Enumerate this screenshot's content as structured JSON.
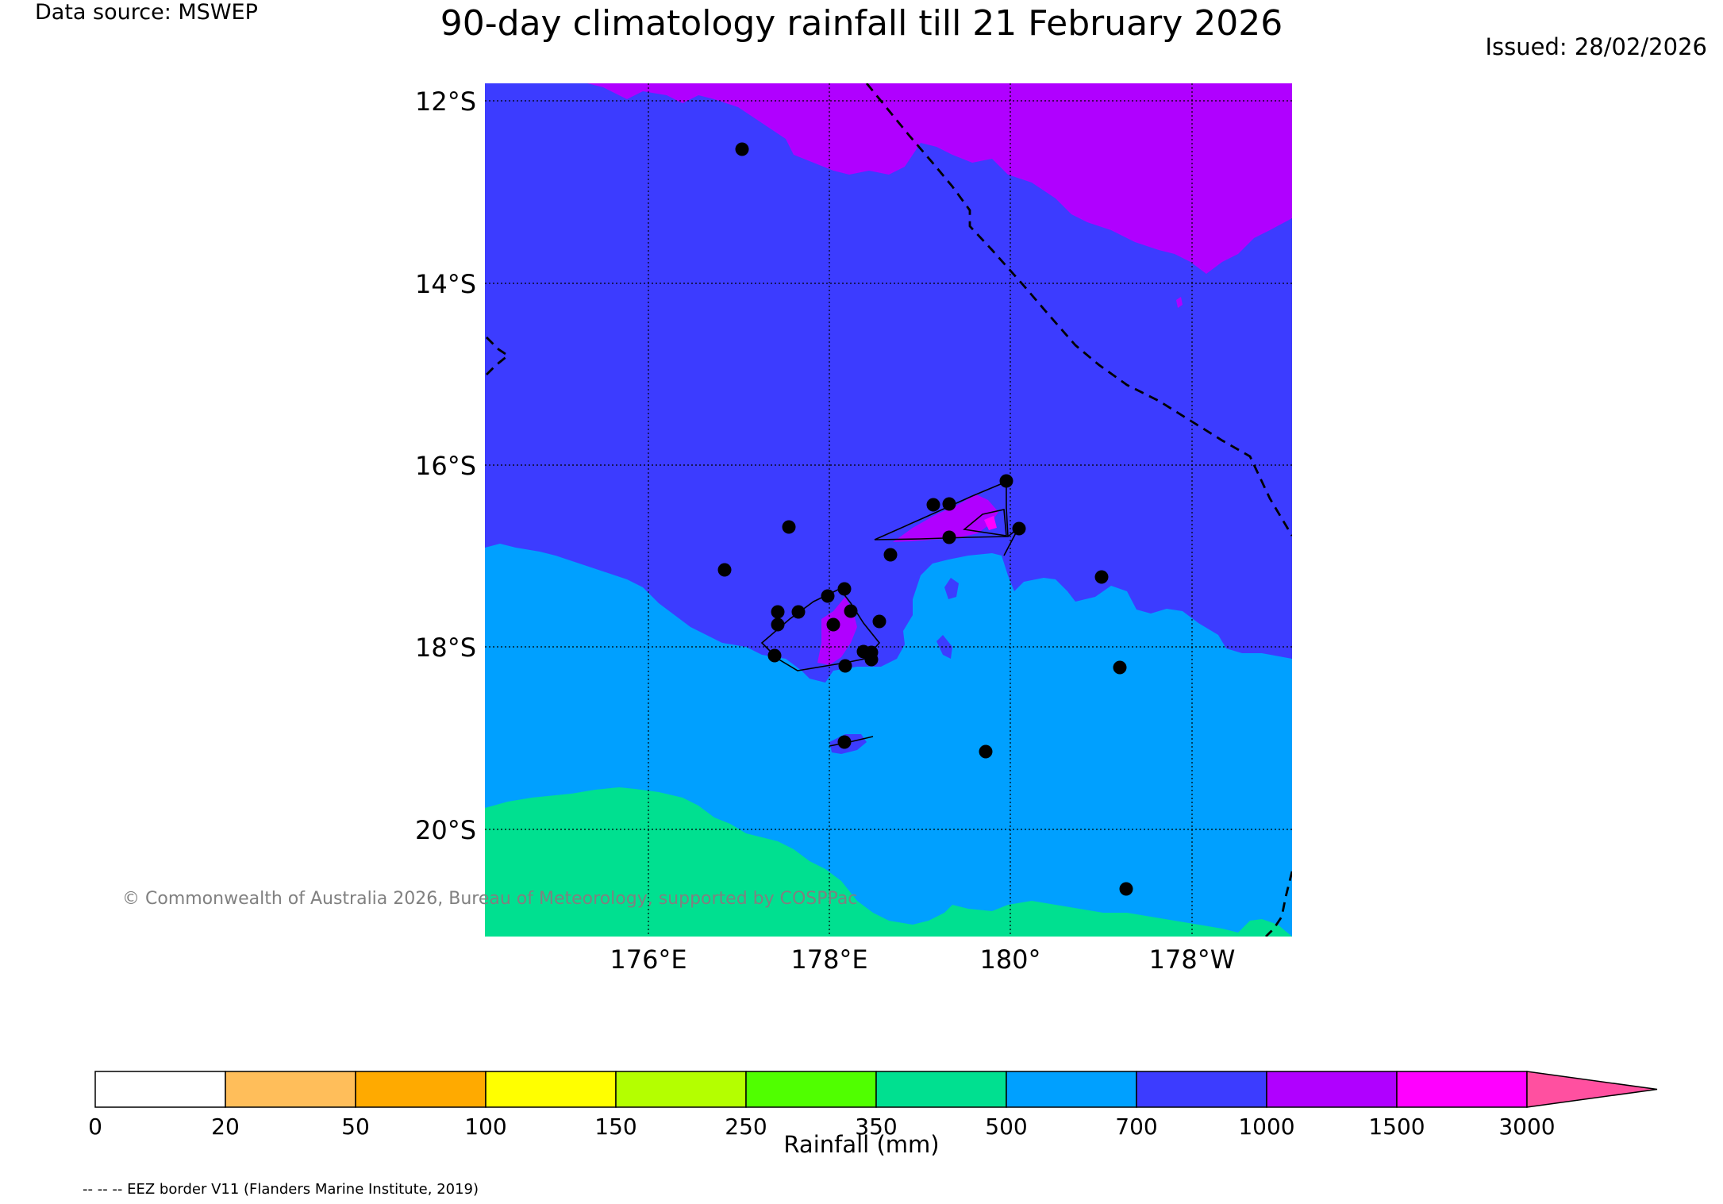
{
  "header": {
    "data_source": "Data source: MSWEP",
    "title": "90-day climatology rainfall till 21 February 2026",
    "issued": "Issued: 28/02/2026"
  },
  "map": {
    "lat_labels": [
      "12°S",
      "14°S",
      "16°S",
      "18°S",
      "20°S"
    ],
    "lon_labels": [
      "176°E",
      "178°E",
      "180°",
      "178°W"
    ],
    "copyright": "© Commonwealth of Australia 2026, Bureau of Meteorology, supported by COSPPac",
    "zone_colors": {
      "1000-1500": "#b000ff",
      "700-1000": "#3c3cff",
      "500-700": "#00a0ff",
      "350-500": "#00e090"
    }
  },
  "colorbar": {
    "title": "Rainfall (mm)",
    "tick_labels": [
      "0",
      "20",
      "50",
      "100",
      "150",
      "250",
      "350",
      "500",
      "700",
      "1000",
      "1500",
      "3000"
    ],
    "colors": [
      "#ffffff",
      "#ffbe5a",
      "#ffaa00",
      "#ffff00",
      "#b4ff00",
      "#50ff00",
      "#00e090",
      "#00a0ff",
      "#3c3cff",
      "#b000ff",
      "#ff00ff"
    ],
    "extend_color": "#ff50a0"
  },
  "footer": {
    "eez_note": "-- -- -- EEZ border V11 (Flanders Marine Institute, 2019)"
  }
}
